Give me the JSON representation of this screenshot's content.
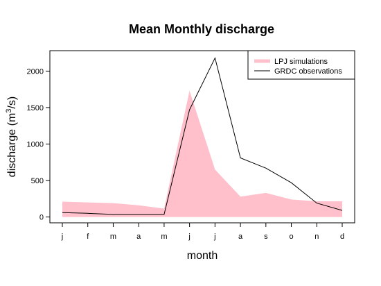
{
  "chart_data": {
    "type": "area",
    "title": "Mean Monthly discharge",
    "xlabel": "month",
    "ylabel_text": "discharge (m",
    "ylabel_sup": "3",
    "ylabel_tail": "/s)",
    "categories": [
      "j",
      "f",
      "m",
      "a",
      "m",
      "j",
      "j",
      "a",
      "s",
      "o",
      "n",
      "d"
    ],
    "yticks": [
      0,
      500,
      1000,
      1500,
      2000
    ],
    "ylim": [
      -80,
      2280
    ],
    "series": [
      {
        "name": "LPJ simulations",
        "style": "area",
        "color": "#ffc0cb",
        "values": [
          210,
          200,
          190,
          160,
          115,
          1730,
          650,
          280,
          330,
          240,
          215,
          215
        ]
      },
      {
        "name": "GRDC observations",
        "style": "line",
        "color": "#000000",
        "values": [
          60,
          50,
          35,
          35,
          35,
          1470,
          2180,
          810,
          670,
          470,
          190,
          90
        ]
      }
    ],
    "legend_position": "top-right",
    "grid": false
  }
}
